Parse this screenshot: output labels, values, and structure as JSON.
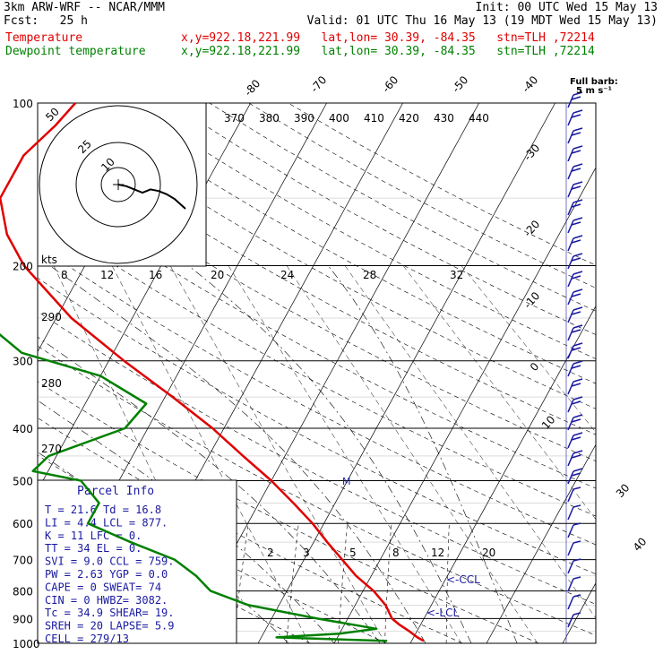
{
  "header": {
    "model": "3km ARW-WRF -- NCAR/MMM",
    "init": "Init: 00 UTC Wed 15 May 13",
    "fcst": "Fcst:   25 h",
    "valid": "Valid: 01 UTC Thu 16 May 13 (19 MDT Wed 15 May 13)",
    "temp_label": "Temperature",
    "temp_loc": "x,y=922.18,221.99   lat,lon= 30.39, -84.35   stn=TLH ,72214",
    "dew_label": "Dewpoint temperature",
    "dew_loc": "x,y=922.18,221.99   lat,lon= 30.39, -84.35   stn=TLH ,72214"
  },
  "colors": {
    "temperature": "#e00000",
    "dewpoint": "#008000",
    "info": "#1a1aa0",
    "barbs": "#1a1aa0"
  },
  "full_barb": "Full barb:",
  "full_barb_unit": "5 m s⁻¹",
  "kts_label": "kts",
  "info_box": {
    "title": "Parcel Info",
    "rows": [
      "T   =    21.6  Td =  16.8",
      "LI  =     4.4  LCL =  877.",
      "K   =      11  LFC =    0.",
      "TT  =      34  EL  =    0.",
      "SVI =     9.0  CCL =  759.",
      "PW  =    2.63  YGP =   0.0",
      "CAPE =      0  SWEAT=   74",
      "CIN  =      0  HWBZ= 3082.",
      "Tc   =   34.9  SHEAR=  19.",
      "SREH =     20  LAPSE=  5.9",
      "CELL = 279/13"
    ]
  },
  "labels": {
    "ccl": "<-CCL",
    "lcl": "<-LCL",
    "m": "M"
  },
  "chart_data": {
    "type": "line",
    "title": "",
    "xlabel": "",
    "ylabel": "",
    "pressure_levels": [
      100,
      200,
      300,
      400,
      500,
      600,
      700,
      800,
      900,
      1000
    ],
    "isotherm_labels": [
      -80,
      -70,
      -60,
      -50,
      -40,
      -30,
      -20,
      -10,
      0,
      10,
      20,
      30,
      40
    ],
    "theta_labels": [
      370,
      380,
      390,
      400,
      410,
      420,
      430,
      440
    ],
    "theta_low_labels": [
      290,
      280,
      270
    ],
    "mixing_ratio_labels_upper": [
      8,
      12,
      16,
      20,
      24,
      28,
      32
    ],
    "mixing_ratio_labels_lower": [
      2,
      3,
      5,
      8,
      12,
      20
    ],
    "hodograph_ring_labels": [
      50,
      25,
      10
    ],
    "series": [
      {
        "name": "Temperature",
        "points": [
          {
            "p": 990,
            "t": 21.6
          },
          {
            "p": 975,
            "t": 20.5
          },
          {
            "p": 950,
            "t": 19.0
          },
          {
            "p": 925,
            "t": 17.3
          },
          {
            "p": 900,
            "t": 15.8
          },
          {
            "p": 850,
            "t": 14.0
          },
          {
            "p": 800,
            "t": 11.4
          },
          {
            "p": 750,
            "t": 8.0
          },
          {
            "p": 700,
            "t": 5.0
          },
          {
            "p": 650,
            "t": 1.8
          },
          {
            "p": 600,
            "t": -1.5
          },
          {
            "p": 550,
            "t": -5.5
          },
          {
            "p": 500,
            "t": -10.0
          },
          {
            "p": 450,
            "t": -15.5
          },
          {
            "p": 400,
            "t": -21.5
          },
          {
            "p": 350,
            "t": -29.0
          },
          {
            "p": 300,
            "t": -38.0
          },
          {
            "p": 250,
            "t": -48.0
          },
          {
            "p": 200,
            "t": -58.0
          },
          {
            "p": 175,
            "t": -62.5
          },
          {
            "p": 150,
            "t": -66.0
          },
          {
            "p": 125,
            "t": -66.0
          },
          {
            "p": 110,
            "t": -64.0
          },
          {
            "p": 100,
            "t": -63.0
          }
        ]
      },
      {
        "name": "Dewpoint temperature",
        "points": [
          {
            "p": 990,
            "t": 16.8
          },
          {
            "p": 975,
            "t": 2.0
          },
          {
            "p": 960,
            "t": 10.0
          },
          {
            "p": 940,
            "t": 14.5
          },
          {
            "p": 900,
            "t": 6.0
          },
          {
            "p": 850,
            "t": -4.0
          },
          {
            "p": 800,
            "t": -10.0
          },
          {
            "p": 750,
            "t": -13.0
          },
          {
            "p": 700,
            "t": -17.0
          },
          {
            "p": 650,
            "t": -24.0
          },
          {
            "p": 600,
            "t": -31.0
          },
          {
            "p": 550,
            "t": -31.0
          },
          {
            "p": 500,
            "t": -35.0
          },
          {
            "p": 480,
            "t": -42.0
          },
          {
            "p": 450,
            "t": -41.0
          },
          {
            "p": 400,
            "t": -33.0
          },
          {
            "p": 360,
            "t": -32.0
          },
          {
            "p": 320,
            "t": -40.0
          },
          {
            "p": 290,
            "t": -52.0
          },
          {
            "p": 250,
            "t": -60.0
          },
          {
            "p": 200,
            "t": -71.0
          },
          {
            "p": 150,
            "t": -82.0
          },
          {
            "p": 120,
            "t": -85.0
          },
          {
            "p": 100,
            "t": -86.0
          }
        ]
      }
    ],
    "hodograph": [
      {
        "u": 0,
        "v": 0
      },
      {
        "u": 3,
        "v": -1
      },
      {
        "u": 6,
        "v": -3
      },
      {
        "u": 9,
        "v": -5
      },
      {
        "u": 12,
        "v": -3
      },
      {
        "u": 15,
        "v": -4
      },
      {
        "u": 18,
        "v": -6
      },
      {
        "u": 21,
        "v": -9
      },
      {
        "u": 25,
        "v": -15
      }
    ]
  }
}
